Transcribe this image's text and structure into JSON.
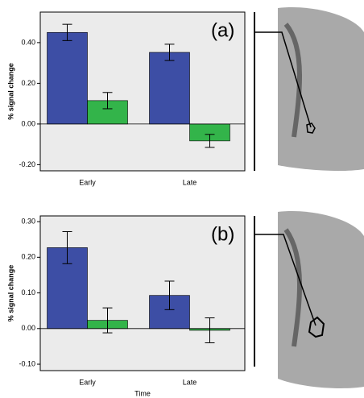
{
  "chart_data": [
    {
      "type": "bar",
      "annotation": "(a)",
      "y_label": "% signal change",
      "categories": [
        "Early",
        "Late"
      ],
      "series": [
        {
          "color": "#3d4ea5",
          "values": [
            0.45,
            0.352
          ],
          "errors": [
            0.04,
            0.04
          ]
        },
        {
          "color": "#33b44a",
          "values": [
            0.115,
            -0.083
          ],
          "errors": [
            0.04,
            0.032
          ]
        }
      ],
      "ylim": [
        -0.23,
        0.55
      ],
      "yticks": [
        {
          "value": -0.2,
          "label": "-0.20"
        },
        {
          "value": 0,
          "label": "0.00"
        },
        {
          "value": 0.2,
          "label": "0.20"
        },
        {
          "value": 0.4,
          "label": "0.40"
        }
      ]
    },
    {
      "type": "bar",
      "annotation": "(b)",
      "y_label": "% signal change",
      "x_label": "Time",
      "categories": [
        "Early",
        "Late"
      ],
      "series": [
        {
          "color": "#3d4ea5",
          "values": [
            0.227,
            0.093
          ],
          "errors": [
            0.045,
            0.04
          ]
        },
        {
          "color": "#33b44a",
          "values": [
            0.023,
            -0.005
          ],
          "errors": [
            0.035,
            0.035
          ]
        }
      ],
      "ylim": [
        -0.118,
        0.316
      ],
      "yticks": [
        {
          "value": -0.1,
          "label": "-0.10"
        },
        {
          "value": 0,
          "label": "0.00"
        },
        {
          "value": 0.1,
          "label": "0.10"
        },
        {
          "value": 0.2,
          "label": "0.20"
        },
        {
          "value": 0.3,
          "label": "0.30"
        }
      ]
    }
  ]
}
